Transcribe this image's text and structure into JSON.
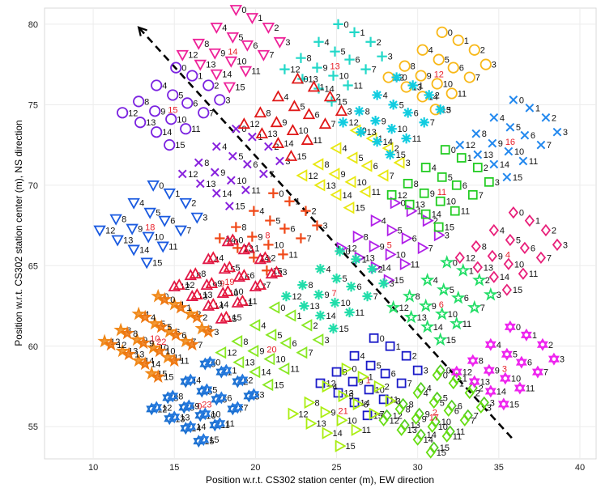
{
  "chart_data": {
    "type": "scatter",
    "xlabel": "Position w.r.t. CS302 station center (m), EW direction",
    "ylabel": "Position w.r.t. CS302 station center (m), NS direction",
    "xlim": [
      7,
      41
    ],
    "ylim": [
      53,
      81
    ],
    "xticks": [
      10,
      15,
      20,
      25,
      30,
      35,
      40
    ],
    "yticks": [
      55,
      60,
      65,
      70,
      75,
      80
    ],
    "grid": true,
    "arrow": {
      "from": [
        35.8,
        54.3
      ],
      "to": [
        12.8,
        79.8
      ],
      "style": "dashed",
      "color": "#000000"
    },
    "tiles": [
      {
        "tile": "0",
        "marker": "star6",
        "color": "#1a6fd0",
        "center": [
          16.3,
          56.3
        ],
        "rotation": 20
      },
      {
        "tile": "1",
        "marker": "square",
        "color": "#1a1ac8",
        "center": [
          26.7,
          57.9
        ],
        "rotation": 0
      },
      {
        "tile": "2",
        "marker": "diamond",
        "color": "#55cc22",
        "center": [
          30.8,
          55.9
        ],
        "rotation": 20
      },
      {
        "tile": "3",
        "marker": "star6",
        "color": "#ee22ee",
        "center": [
          35.1,
          58.6
        ],
        "rotation": 20
      },
      {
        "tile": "4",
        "marker": "diamond",
        "color": "#e8207a",
        "center": [
          35.3,
          65.7
        ],
        "rotation": 20
      },
      {
        "tile": "5",
        "marker": "triangle-right",
        "color": "#b020e8",
        "center": [
          28.0,
          66.3
        ],
        "rotation": 20
      },
      {
        "tile": "6",
        "marker": "star",
        "color": "#22dd66",
        "center": [
          31.2,
          62.6
        ],
        "rotation": 20
      },
      {
        "tile": "7",
        "marker": "asterisk",
        "color": "#22ddaa",
        "center": [
          24.6,
          63.3
        ],
        "rotation": 20
      },
      {
        "tile": "8",
        "marker": "plus",
        "color": "#f04818",
        "center": [
          20.5,
          66.9
        ],
        "rotation": 20
      },
      {
        "tile": "9",
        "marker": "triangle-up",
        "color": "#e01848",
        "center": [
          17.7,
          63.9
        ],
        "rotation": 20
      },
      {
        "tile": "10",
        "marker": "star5",
        "color": "#f08818",
        "center": [
          13.4,
          60.5
        ],
        "rotation": 20
      },
      {
        "tile": "11",
        "marker": "square",
        "color": "#22cc22",
        "center": [
          31.1,
          69.6
        ],
        "rotation": 20
      },
      {
        "tile": "12",
        "marker": "circle",
        "color": "#f8b818",
        "center": [
          30.9,
          76.9
        ],
        "rotation": 20
      },
      {
        "tile": "13",
        "marker": "plus",
        "color": "#22d8c8",
        "center": [
          24.5,
          77.4
        ],
        "rotation": 20
      },
      {
        "tile": "14",
        "marker": "triangle-down",
        "color": "#ee2299",
        "center": [
          18.2,
          78.3
        ],
        "rotation": 20
      },
      {
        "tile": "15",
        "marker": "circle",
        "color": "#7a22e0",
        "center": [
          14.5,
          74.7
        ],
        "rotation": 20
      },
      {
        "tile": "16",
        "marker": "cross",
        "color": "#2288ee",
        "center": [
          35.3,
          72.7
        ],
        "rotation": 20
      },
      {
        "tile": "17",
        "marker": "diamond",
        "color": "#66dd11",
        "center": [
          30.6,
          55.6
        ],
        "rotation": 20
      },
      {
        "tile": "18",
        "marker": "triangle-down",
        "color": "#1a5ae0",
        "center": [
          13.1,
          67.4
        ],
        "rotation": 20
      },
      {
        "tile": "19",
        "marker": "triangle-up",
        "color": "#e8183a",
        "center": [
          18.0,
          64.0
        ],
        "rotation": 20
      },
      {
        "tile": "20",
        "marker": "triangle-left",
        "color": "#88e822",
        "center": [
          20.6,
          59.8
        ],
        "rotation": 20
      },
      {
        "tile": "21",
        "marker": "triangle-right",
        "color": "#aaee11",
        "center": [
          25.0,
          56.0
        ],
        "rotation": 20
      },
      {
        "tile": "22",
        "marker": "star5",
        "color": "#ee7711",
        "center": [
          13.8,
          60.3
        ],
        "rotation": 20
      },
      {
        "tile": "23",
        "marker": "star6",
        "color": "#2277dd",
        "center": [
          16.6,
          56.4
        ],
        "rotation": 20
      },
      {
        "tile": "a",
        "marker": "cross",
        "color": "#8822dd",
        "center": [
          18.2,
          70.9
        ],
        "rotation": 20
      },
      {
        "tile": "b",
        "marker": "triangle-up",
        "color": "#e01818",
        "center": [
          22.0,
          74.0
        ],
        "rotation": 20
      },
      {
        "tile": "c",
        "marker": "triangle-left",
        "color": "#e8e811",
        "center": [
          25.6,
          70.8
        ],
        "rotation": 20
      },
      {
        "tile": "d",
        "marker": "asterisk",
        "color": "#11cce0",
        "center": [
          28.1,
          74.1
        ],
        "rotation": 20
      }
    ]
  }
}
